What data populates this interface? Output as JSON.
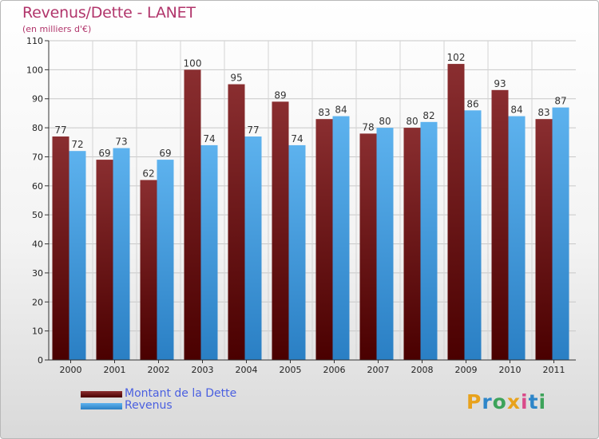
{
  "header": {
    "title": "Revenus/Dette - LANET",
    "subtitle": "(en milliers d'€)"
  },
  "legend": {
    "debt_label": "Montant de la Dette",
    "revenue_label": "Revenus"
  },
  "logo": {
    "text": "Proxiti"
  },
  "colors": {
    "debt": "#7a1f24",
    "revenue": "#3f9ee0",
    "title": "#b1356b",
    "legend_text": "#4a5fe0"
  },
  "chart_data": {
    "type": "bar",
    "title": "Revenus/Dette - LANET",
    "subtitle": "(en milliers d'€)",
    "categories": [
      "2000",
      "2001",
      "2002",
      "2003",
      "2004",
      "2005",
      "2006",
      "2007",
      "2008",
      "2009",
      "2010",
      "2011"
    ],
    "series": [
      {
        "name": "Montant de la Dette",
        "values": [
          77,
          69,
          62,
          100,
          95,
          89,
          83,
          78,
          80,
          102,
          93,
          83
        ]
      },
      {
        "name": "Revenus",
        "values": [
          72,
          73,
          69,
          74,
          77,
          74,
          84,
          80,
          82,
          86,
          84,
          87
        ]
      }
    ],
    "ylim": [
      0,
      110
    ],
    "yticks": [
      0,
      10,
      20,
      30,
      40,
      50,
      60,
      70,
      80,
      90,
      100,
      110
    ],
    "grid": true,
    "legend_position": "bottom-left"
  }
}
